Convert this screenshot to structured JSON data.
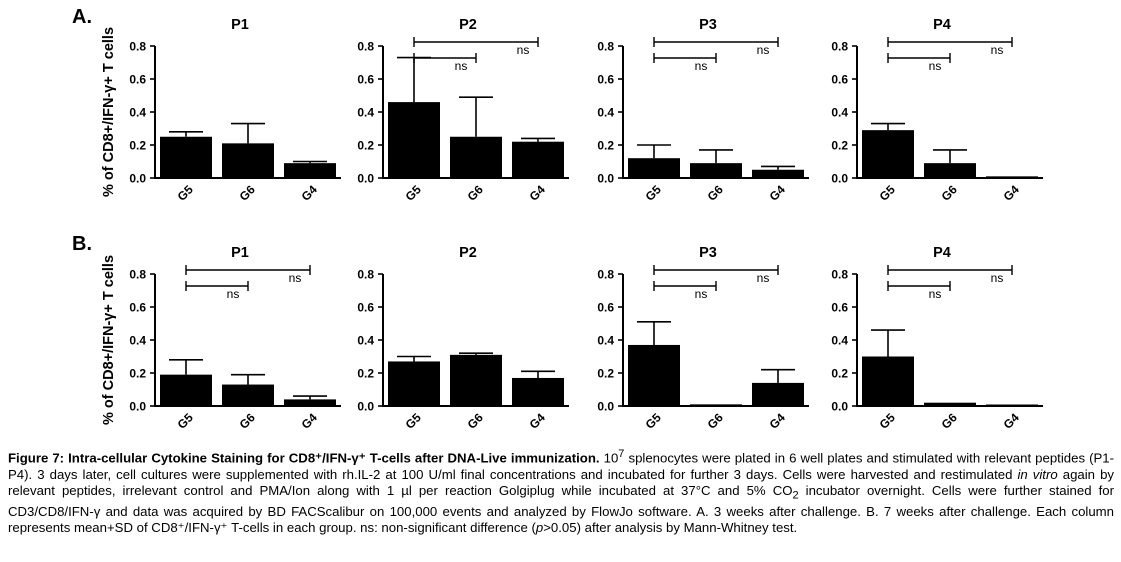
{
  "figure": {
    "ylabel": "% of CD8+/IFN-γ+ T cells",
    "rows": [
      {
        "letter": "A.",
        "panels": [
          {
            "title": "P1",
            "type": "bar",
            "categories": [
              "G5",
              "G6",
              "G4"
            ],
            "values": [
              0.25,
              0.21,
              0.09
            ],
            "errors": [
              0.03,
              0.12,
              0.01
            ],
            "ylim": [
              0,
              0.8
            ],
            "yticks": [
              "0.0",
              "0.2",
              "0.4",
              "0.6",
              "0.8"
            ],
            "brackets": []
          },
          {
            "title": "P2",
            "type": "bar",
            "categories": [
              "G5",
              "G6",
              "G4"
            ],
            "values": [
              0.46,
              0.25,
              0.22
            ],
            "errors": [
              0.27,
              0.24,
              0.02
            ],
            "ylim": [
              0,
              0.8
            ],
            "yticks": [
              "0.0",
              "0.2",
              "0.4",
              "0.6",
              "0.8"
            ],
            "brackets": [
              {
                "from": 0,
                "to": 1,
                "label": "ns",
                "level": "low"
              },
              {
                "from": 0,
                "to": 2,
                "label": "ns",
                "level": "high"
              }
            ]
          },
          {
            "title": "P3",
            "type": "bar",
            "categories": [
              "G5",
              "G6",
              "G4"
            ],
            "values": [
              0.12,
              0.09,
              0.05
            ],
            "errors": [
              0.08,
              0.08,
              0.02
            ],
            "ylim": [
              0,
              0.8
            ],
            "yticks": [
              "0.0",
              "0.2",
              "0.4",
              "0.6",
              "0.8"
            ],
            "brackets": [
              {
                "from": 0,
                "to": 1,
                "label": "ns",
                "level": "low"
              },
              {
                "from": 0,
                "to": 2,
                "label": "ns",
                "level": "high"
              }
            ]
          },
          {
            "title": "P4",
            "type": "bar",
            "categories": [
              "G5",
              "G6",
              "G4"
            ],
            "values": [
              0.29,
              0.09,
              0.01
            ],
            "errors": [
              0.04,
              0.08,
              0.0
            ],
            "ylim": [
              0,
              0.8
            ],
            "yticks": [
              "0.0",
              "0.2",
              "0.4",
              "0.6",
              "0.8"
            ],
            "brackets": [
              {
                "from": 0,
                "to": 1,
                "label": "ns",
                "level": "low"
              },
              {
                "from": 0,
                "to": 2,
                "label": "ns",
                "level": "high"
              }
            ]
          }
        ]
      },
      {
        "letter": "B.",
        "panels": [
          {
            "title": "P1",
            "type": "bar",
            "categories": [
              "G5",
              "G6",
              "G4"
            ],
            "values": [
              0.19,
              0.13,
              0.04
            ],
            "errors": [
              0.09,
              0.06,
              0.02
            ],
            "ylim": [
              0,
              0.8
            ],
            "yticks": [
              "0.0",
              "0.2",
              "0.4",
              "0.6",
              "0.8"
            ],
            "brackets": [
              {
                "from": 0,
                "to": 1,
                "label": "ns",
                "level": "low"
              },
              {
                "from": 0,
                "to": 2,
                "label": "ns",
                "level": "high"
              }
            ]
          },
          {
            "title": "P2",
            "type": "bar",
            "categories": [
              "G5",
              "G6",
              "G4"
            ],
            "values": [
              0.27,
              0.31,
              0.17
            ],
            "errors": [
              0.03,
              0.01,
              0.04
            ],
            "ylim": [
              0,
              0.8
            ],
            "yticks": [
              "0.0",
              "0.2",
              "0.4",
              "0.6",
              "0.8"
            ],
            "brackets": []
          },
          {
            "title": "P3",
            "type": "bar",
            "categories": [
              "G5",
              "G6",
              "G4"
            ],
            "values": [
              0.37,
              0.01,
              0.14
            ],
            "errors": [
              0.14,
              0.0,
              0.08
            ],
            "ylim": [
              0,
              0.8
            ],
            "yticks": [
              "0.0",
              "0.2",
              "0.4",
              "0.6",
              "0.8"
            ],
            "brackets": [
              {
                "from": 0,
                "to": 1,
                "label": "ns",
                "level": "low"
              },
              {
                "from": 0,
                "to": 2,
                "label": "ns",
                "level": "high"
              }
            ]
          },
          {
            "title": "P4",
            "type": "bar",
            "categories": [
              "G5",
              "G6",
              "G4"
            ],
            "values": [
              0.3,
              0.02,
              0.005
            ],
            "errors": [
              0.16,
              0.0,
              0.0
            ],
            "ylim": [
              0,
              0.8
            ],
            "yticks": [
              "0.0",
              "0.2",
              "0.4",
              "0.6",
              "0.8"
            ],
            "brackets": [
              {
                "from": 0,
                "to": 1,
                "label": "ns",
                "level": "low"
              },
              {
                "from": 0,
                "to": 2,
                "label": "ns",
                "level": "high"
              }
            ]
          }
        ]
      }
    ]
  },
  "chart_data": [
    {
      "type": "bar",
      "title": "P1",
      "categories": [
        "G5",
        "G6",
        "G4"
      ],
      "values": [
        0.25,
        0.21,
        0.09
      ],
      "errors": [
        0.03,
        0.12,
        0.01
      ],
      "ylabel": "% of CD8+/IFN-γ+ T cells",
      "ylim": [
        0,
        0.8
      ]
    },
    {
      "type": "bar",
      "title": "P2",
      "categories": [
        "G5",
        "G6",
        "G4"
      ],
      "values": [
        0.46,
        0.25,
        0.22
      ],
      "errors": [
        0.27,
        0.24,
        0.02
      ],
      "ylim": [
        0,
        0.8
      ]
    },
    {
      "type": "bar",
      "title": "P3",
      "categories": [
        "G5",
        "G6",
        "G4"
      ],
      "values": [
        0.12,
        0.09,
        0.05
      ],
      "errors": [
        0.08,
        0.08,
        0.02
      ],
      "ylim": [
        0,
        0.8
      ]
    },
    {
      "type": "bar",
      "title": "P4",
      "categories": [
        "G5",
        "G6",
        "G4"
      ],
      "values": [
        0.29,
        0.09,
        0.01
      ],
      "errors": [
        0.04,
        0.08,
        0.0
      ],
      "ylim": [
        0,
        0.8
      ]
    },
    {
      "type": "bar",
      "title": "P1",
      "categories": [
        "G5",
        "G6",
        "G4"
      ],
      "values": [
        0.19,
        0.13,
        0.04
      ],
      "errors": [
        0.09,
        0.06,
        0.02
      ],
      "ylabel": "% of CD8+/IFN-γ+ T cells",
      "ylim": [
        0,
        0.8
      ]
    },
    {
      "type": "bar",
      "title": "P2",
      "categories": [
        "G5",
        "G6",
        "G4"
      ],
      "values": [
        0.27,
        0.31,
        0.17
      ],
      "errors": [
        0.03,
        0.01,
        0.04
      ],
      "ylim": [
        0,
        0.8
      ]
    },
    {
      "type": "bar",
      "title": "P3",
      "categories": [
        "G5",
        "G6",
        "G4"
      ],
      "values": [
        0.37,
        0.01,
        0.14
      ],
      "errors": [
        0.14,
        0.0,
        0.08
      ],
      "ylim": [
        0,
        0.8
      ]
    },
    {
      "type": "bar",
      "title": "P4",
      "categories": [
        "G5",
        "G6",
        "G4"
      ],
      "values": [
        0.3,
        0.02,
        0.005
      ],
      "errors": [
        0.16,
        0.0,
        0.0
      ],
      "ylim": [
        0,
        0.8
      ]
    }
  ],
  "caption": {
    "label": "Figure 7: Intra-cellular Cytokine Staining for CD8⁺/IFN-γ⁺ T-cells after DNA-Live immunization.",
    "s1": " 10",
    "s1_sup": "7",
    "s2": " splenocytes were plated in 6 well plates and stimulated with relevant peptides (P1-P4). 3 days later, cell cultures were supplemented with rh.IL-2 at 100 U/ml final concentrations and incubated for further 3 days. Cells were harvested and restimulated ",
    "s2_italic": "in vitro",
    "s3": " again by relevant peptides, irrelevant control and PMA/Ion along with 1 µl per reaction Golgiplug while incubated at 37°C and 5% CO",
    "s3_sub": "2",
    "s4": " incubator overnight. Cells were further stained for CD3/CD8/IFN-γ and data was acquired by BD FACScalibur on 100,000 events and analyzed by FlowJo software. A. 3 weeks after challenge. B. 7 weeks after challenge. Each column represents mean+SD of CD8⁺/IFN-γ⁺ T-cells in each group. ns: non-significant difference (",
    "s4_italic": "p",
    "s5": ">0.05) after analysis by Mann-Whitney test."
  }
}
